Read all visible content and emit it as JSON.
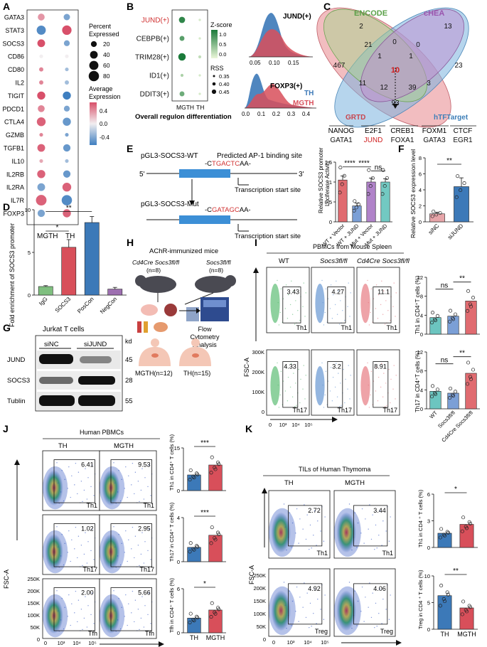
{
  "panel_labels": [
    "A",
    "B",
    "C",
    "D",
    "E",
    "F",
    "G",
    "H",
    "I",
    "J",
    "K"
  ],
  "colors": {
    "blue": "#3c79b8",
    "red": "#d84f5a",
    "green_light": "#b9e0a5",
    "green_dark": "#1b7a3a",
    "teal": "#6cc5c0",
    "purple": "#9d6fb0",
    "pink": "#e7a5a9",
    "encode": "#8fbf7a",
    "chea": "#b07ac0",
    "grtd": "#e8878c",
    "htft": "#7ab2de"
  },
  "panelA": {
    "genes": [
      "GATA3",
      "STAT3",
      "SOCS3",
      "CD86",
      "CD80",
      "IL2",
      "TIGIT",
      "PDCD1",
      "CTLA4",
      "GZMB",
      "TGFB1",
      "IL10",
      "IL2RB",
      "IL2RA",
      "IL7R",
      "FOXP3"
    ],
    "groups": [
      "MGTH",
      "TH"
    ],
    "size_title": "Percent\nExpressed",
    "size_ticks": [
      "20",
      "40",
      "60",
      "80"
    ],
    "color_title": "Average\nExpression",
    "color_ticks": [
      "0.4",
      "0.0",
      "-0.4"
    ],
    "chart_data": {
      "type": "dotplot",
      "note": "size = percent expressed, color = average expression",
      "rows": [
        {
          "gene": "GATA3",
          "MGTH": {
            "pct": 30,
            "avg": 0.25
          },
          "TH": {
            "pct": 25,
            "avg": -0.3
          }
        },
        {
          "gene": "STAT3",
          "MGTH": {
            "pct": 60,
            "avg": -0.4
          },
          "TH": {
            "pct": 65,
            "avg": 0.45
          }
        },
        {
          "gene": "SOCS3",
          "MGTH": {
            "pct": 40,
            "avg": 0.45
          },
          "TH": {
            "pct": 20,
            "avg": -0.3
          }
        },
        {
          "gene": "CD86",
          "MGTH": {
            "pct": 5,
            "avg": 0.0
          },
          "TH": {
            "pct": 5,
            "avg": 0.0
          }
        },
        {
          "gene": "CD80",
          "MGTH": {
            "pct": 8,
            "avg": 0.3
          },
          "TH": {
            "pct": 5,
            "avg": -0.2
          }
        },
        {
          "gene": "IL2",
          "MGTH": {
            "pct": 8,
            "avg": 0.3
          },
          "TH": {
            "pct": 8,
            "avg": -0.2
          }
        },
        {
          "gene": "TIGIT",
          "MGTH": {
            "pct": 45,
            "avg": 0.45
          },
          "TH": {
            "pct": 45,
            "avg": -0.45
          }
        },
        {
          "gene": "PDCD1",
          "MGTH": {
            "pct": 30,
            "avg": 0.3
          },
          "TH": {
            "pct": 20,
            "avg": -0.3
          }
        },
        {
          "gene": "CTLA4",
          "MGTH": {
            "pct": 55,
            "avg": 0.4
          },
          "TH": {
            "pct": 45,
            "avg": -0.35
          }
        },
        {
          "gene": "GZMB",
          "MGTH": {
            "pct": 5,
            "avg": 0.3
          },
          "TH": {
            "pct": 5,
            "avg": -0.3
          }
        },
        {
          "gene": "TGFB1",
          "MGTH": {
            "pct": 40,
            "avg": 0.4
          },
          "TH": {
            "pct": 35,
            "avg": -0.35
          }
        },
        {
          "gene": "IL10",
          "MGTH": {
            "pct": 5,
            "avg": 0.2
          },
          "TH": {
            "pct": 5,
            "avg": -0.2
          }
        },
        {
          "gene": "IL2RB",
          "MGTH": {
            "pct": 45,
            "avg": 0.4
          },
          "TH": {
            "pct": 35,
            "avg": -0.35
          }
        },
        {
          "gene": "IL2RA",
          "MGTH": {
            "pct": 40,
            "avg": -0.3
          },
          "TH": {
            "pct": 55,
            "avg": 0.4
          }
        },
        {
          "gene": "IL7R",
          "MGTH": {
            "pct": 85,
            "avg": 0.4
          },
          "TH": {
            "pct": 80,
            "avg": -0.4
          }
        },
        {
          "gene": "FOXP3",
          "MGTH": {
            "pct": 35,
            "avg": -0.3
          },
          "TH": {
            "pct": 45,
            "avg": 0.4
          }
        }
      ]
    }
  },
  "panelB": {
    "regulons": [
      "JUND(+)",
      "CEBPB(+)",
      "TRIM28(+)",
      "ID1(+)",
      "DDIT3(+)"
    ],
    "groups": [
      "MGTH",
      "TH"
    ],
    "zscore_title": "Z-score",
    "zscore_ticks": [
      "1.0",
      "0.5",
      "0.0"
    ],
    "rss_title": "RSS",
    "rss_ticks": [
      "0.35",
      "0.40",
      "0.45"
    ],
    "xlabel": "Overall regulon differentiation",
    "density1_title": "JUND(+)",
    "density1_ticks": [
      "0.05",
      "0.10",
      "0.15"
    ],
    "density2_title": "FOXP3(+)",
    "density2_ticks": [
      "0.0",
      "0.1",
      "0.2",
      "0.3",
      "0.4"
    ],
    "legend_th": "TH",
    "legend_mgth": "MGTH",
    "chart_data": {
      "type": "dotplot",
      "rows": [
        {
          "regulon": "JUND(+)",
          "MGTH": {
            "z": 0.9,
            "rss": 0.42
          },
          "TH": {
            "z": 0.1,
            "rss": 0.36
          }
        },
        {
          "regulon": "CEBPB(+)",
          "MGTH": {
            "z": 0.7,
            "rss": 0.4
          },
          "TH": {
            "z": 0.1,
            "rss": 0.36
          }
        },
        {
          "regulon": "TRIM28(+)",
          "MGTH": {
            "z": 1.0,
            "rss": 0.44
          },
          "TH": {
            "z": 0.2,
            "rss": 0.37
          }
        },
        {
          "regulon": "ID1(+)",
          "MGTH": {
            "z": 0.3,
            "rss": 0.37
          },
          "TH": {
            "z": 0.1,
            "rss": 0.36
          }
        },
        {
          "regulon": "DDIT3(+)",
          "MGTH": {
            "z": 0.6,
            "rss": 0.4
          },
          "TH": {
            "z": 0.1,
            "rss": 0.36
          }
        }
      ]
    }
  },
  "panelC": {
    "sets": [
      "ENCODE",
      "cHEA",
      "GRTD",
      "hTFTarget"
    ],
    "chart_data": {
      "type": "venn4",
      "regions": [
        {
          "label": "ENCODE only",
          "value": 2
        },
        {
          "label": "cHEA only",
          "value": 13
        },
        {
          "label": "GRTD only",
          "value": 467
        },
        {
          "label": "hTFTarget only",
          "value": 23
        },
        {
          "label": "ENCODE∩GRTD",
          "value": 21
        },
        {
          "label": "ENCODE∩cHEA",
          "value": 0
        },
        {
          "label": "cHEA∩hTFTarget",
          "value": 0
        },
        {
          "label": "ENCODE∩cHEA∩GRTD",
          "value": 1
        },
        {
          "label": "ENCODE∩cHEA∩hTFTarget",
          "value": 1
        },
        {
          "label": "GRTD∩hTFTarget (left)",
          "value": 11
        },
        {
          "label": "all four",
          "value": 10
        },
        {
          "label": "cHEA∩hTFTarget (lower)",
          "value": 3
        },
        {
          "label": "ENCODE∩GRTD∩hTFTarget",
          "value": 12
        },
        {
          "label": "cHEA∩GRTD∩hTFTarget",
          "value": 39
        },
        {
          "label": "GRTD∩hTFTarget",
          "value": 93
        }
      ]
    },
    "genes_row1": [
      "NANOG",
      "E2F1",
      "CREB1",
      "FOXM1",
      "CTCF"
    ],
    "genes_row2": [
      "GATA1",
      "JUND",
      "FOXA1",
      "GATA3",
      "EGR1"
    ]
  },
  "panelD": {
    "ylabel": "Fold enrichment of SOCS3 promoter",
    "sig1": "*",
    "sig2": "**",
    "chart_data": {
      "type": "bar",
      "categories": [
        "IgG",
        "SOCS3",
        "PosCon",
        "NegCon"
      ],
      "values": [
        1.0,
        5.6,
        8.5,
        0.7
      ],
      "errors": [
        0.1,
        0.9,
        0.7,
        0.2
      ],
      "ylim": [
        0,
        10
      ]
    }
  },
  "panelE": {
    "wt_label": "pGL3-SOCS3-WT",
    "mut_label": "pGL3-SOCS3-Mut",
    "binding_label": "Predicted AP-1 binding site",
    "five": "5'",
    "three": "3'",
    "wt_seq_pre": "-C",
    "wt_seq_core": "TGACTC",
    "wt_seq_post": "AA-",
    "mut_seq_pre": "-C",
    "mut_seq_core": "GATAGC",
    "mut_seq_post": "AA-",
    "tss": "Transcription start site",
    "ylabel": "Relative SOCS3 promoter\nLuciferase Activity",
    "sig_left": "****",
    "sig_mid": "****",
    "sig_right": "ns",
    "chart_data": {
      "type": "bar",
      "categories": [
        "WT + Vector",
        "WT + JUND",
        "Mut + Vector",
        "Mut + JUND"
      ],
      "values": [
        1.05,
        0.4,
        1.0,
        1.0
      ],
      "errors": [
        0.1,
        0.07,
        0.1,
        0.08
      ],
      "ylim": [
        0,
        1.5
      ]
    }
  },
  "panelF": {
    "ylabel": "Relative SOCS3 expression level",
    "sig": "**",
    "chart_data": {
      "type": "bar",
      "categories": [
        "siNC",
        "siJUND"
      ],
      "values": [
        1.0,
        4.4
      ],
      "errors": [
        0.2,
        1.1
      ],
      "ylim": [
        0,
        8
      ]
    }
  },
  "panelG": {
    "title": "Jurkat T cells",
    "lanes": [
      "siNC",
      "siJUND"
    ],
    "kd": "kd",
    "bands": [
      {
        "name": "JUND",
        "kd": "45"
      },
      {
        "name": "SOCS3",
        "kd": "28"
      },
      {
        "name": "Tublin",
        "kd": "55"
      }
    ]
  },
  "panelH": {
    "title": "AChR-immunized mice",
    "mouse1": "Cd4Cre Socs3fl/fl",
    "mouse1_n": "(n=8)",
    "mouse2": "Socs3fl/fl",
    "mouse2_n": "(n=8)",
    "machine": "Flow\nCytometry\nAnalysis",
    "human1": "MGTH(n=12)",
    "human2": "TH(n=15)"
  },
  "panelI": {
    "title": "PBMCs from Mouse Spleen",
    "columns": [
      "WT",
      "Socs3fl/fl",
      "Cd4Cre Socs3fl/fl"
    ],
    "th1_values": [
      "3.43",
      "4.27",
      "11.1"
    ],
    "th17_values": [
      "4.33",
      "3.2",
      "8.91"
    ],
    "th1_label": "Th1",
    "th17_label": "Th17",
    "yaxis": "FSC-A",
    "yticks": [
      "300K",
      "200K",
      "100K",
      "0"
    ],
    "xticks": [
      "0",
      "10³",
      "10⁴",
      "10⁵"
    ],
    "bar1_ylabel": "Th1 in CD4⁺T cells (%)",
    "bar2_ylabel": "Th17 in CD4⁺T cells (%)",
    "sig_ns": "ns",
    "sig": "**",
    "chart_data": [
      {
        "type": "bar",
        "categories": [
          "WT",
          "Socs3fl/fl",
          "Cd4Cre Socs3fl/fl"
        ],
        "values": [
          3.5,
          3.8,
          7.0
        ],
        "ylim": [
          0,
          12
        ]
      },
      {
        "type": "bar",
        "categories": [
          "WT",
          "Socs3fl/fl",
          "Cd4Cre Socs3fl/fl"
        ],
        "values": [
          3.7,
          3.3,
          7.5
        ],
        "ylim": [
          0,
          12
        ]
      }
    ]
  },
  "panelJ": {
    "title": "Human PBMCs",
    "columns": [
      "TH",
      "MGTH"
    ],
    "rows": [
      {
        "label": "Th1",
        "values": [
          "6.41",
          "9.53"
        ]
      },
      {
        "label": "Th17",
        "values": [
          "1.02",
          "2.95"
        ]
      },
      {
        "label": "Tfh",
        "values": [
          "2.00",
          "5.66"
        ]
      }
    ],
    "yaxis": "FSC-A",
    "yticks": [
      "250K",
      "200K",
      "150K",
      "100K",
      "50K",
      "0"
    ],
    "xticks": [
      "0",
      "10³",
      "10⁴",
      "10⁵"
    ],
    "bar_labels": [
      "Th1 in CD4⁺ T cells (%)",
      "Th17 in CD4⁺ T cells (%)",
      "Tfh in CD4⁺ T cells (%)"
    ],
    "sigs": [
      "***",
      "***",
      "*"
    ],
    "chart_data": [
      {
        "type": "bar",
        "categories": [
          "TH",
          "MGTH"
        ],
        "values": [
          5.5,
          9.0
        ],
        "ylim": [
          0,
          15
        ]
      },
      {
        "type": "bar",
        "categories": [
          "TH",
          "MGTH"
        ],
        "values": [
          1.3,
          2.4
        ],
        "ylim": [
          0,
          4
        ]
      },
      {
        "type": "bar",
        "categories": [
          "TH",
          "MGTH"
        ],
        "values": [
          2.0,
          3.1
        ],
        "ylim": [
          0,
          6
        ]
      }
    ]
  },
  "panelK": {
    "title": "TILs of Human Thymoma",
    "columns": [
      "TH",
      "MGTH"
    ],
    "rows": [
      {
        "label": "Th1",
        "values": [
          "2.72",
          "3.44"
        ]
      },
      {
        "label": "Treg",
        "values": [
          "4.92",
          "4.06"
        ]
      }
    ],
    "yaxis": "FSC-A",
    "yticks": [
      "250K",
      "200K",
      "150K",
      "100K",
      "50K",
      "0"
    ],
    "xticks": [
      "0",
      "10³",
      "10⁴",
      "10⁵"
    ],
    "bar_labels": [
      "Th1 in CD4 ⁺ T cells (%)",
      "Treg in CD4 ⁺ T cells (%)"
    ],
    "sigs": [
      "*",
      "**"
    ],
    "chart_data": [
      {
        "type": "bar",
        "categories": [
          "TH",
          "MGTH"
        ],
        "values": [
          1.6,
          2.6
        ],
        "ylim": [
          0,
          6
        ]
      },
      {
        "type": "bar",
        "categories": [
          "TH",
          "MGTH"
        ],
        "values": [
          6.3,
          4.0
        ],
        "ylim": [
          0,
          10
        ]
      }
    ]
  }
}
